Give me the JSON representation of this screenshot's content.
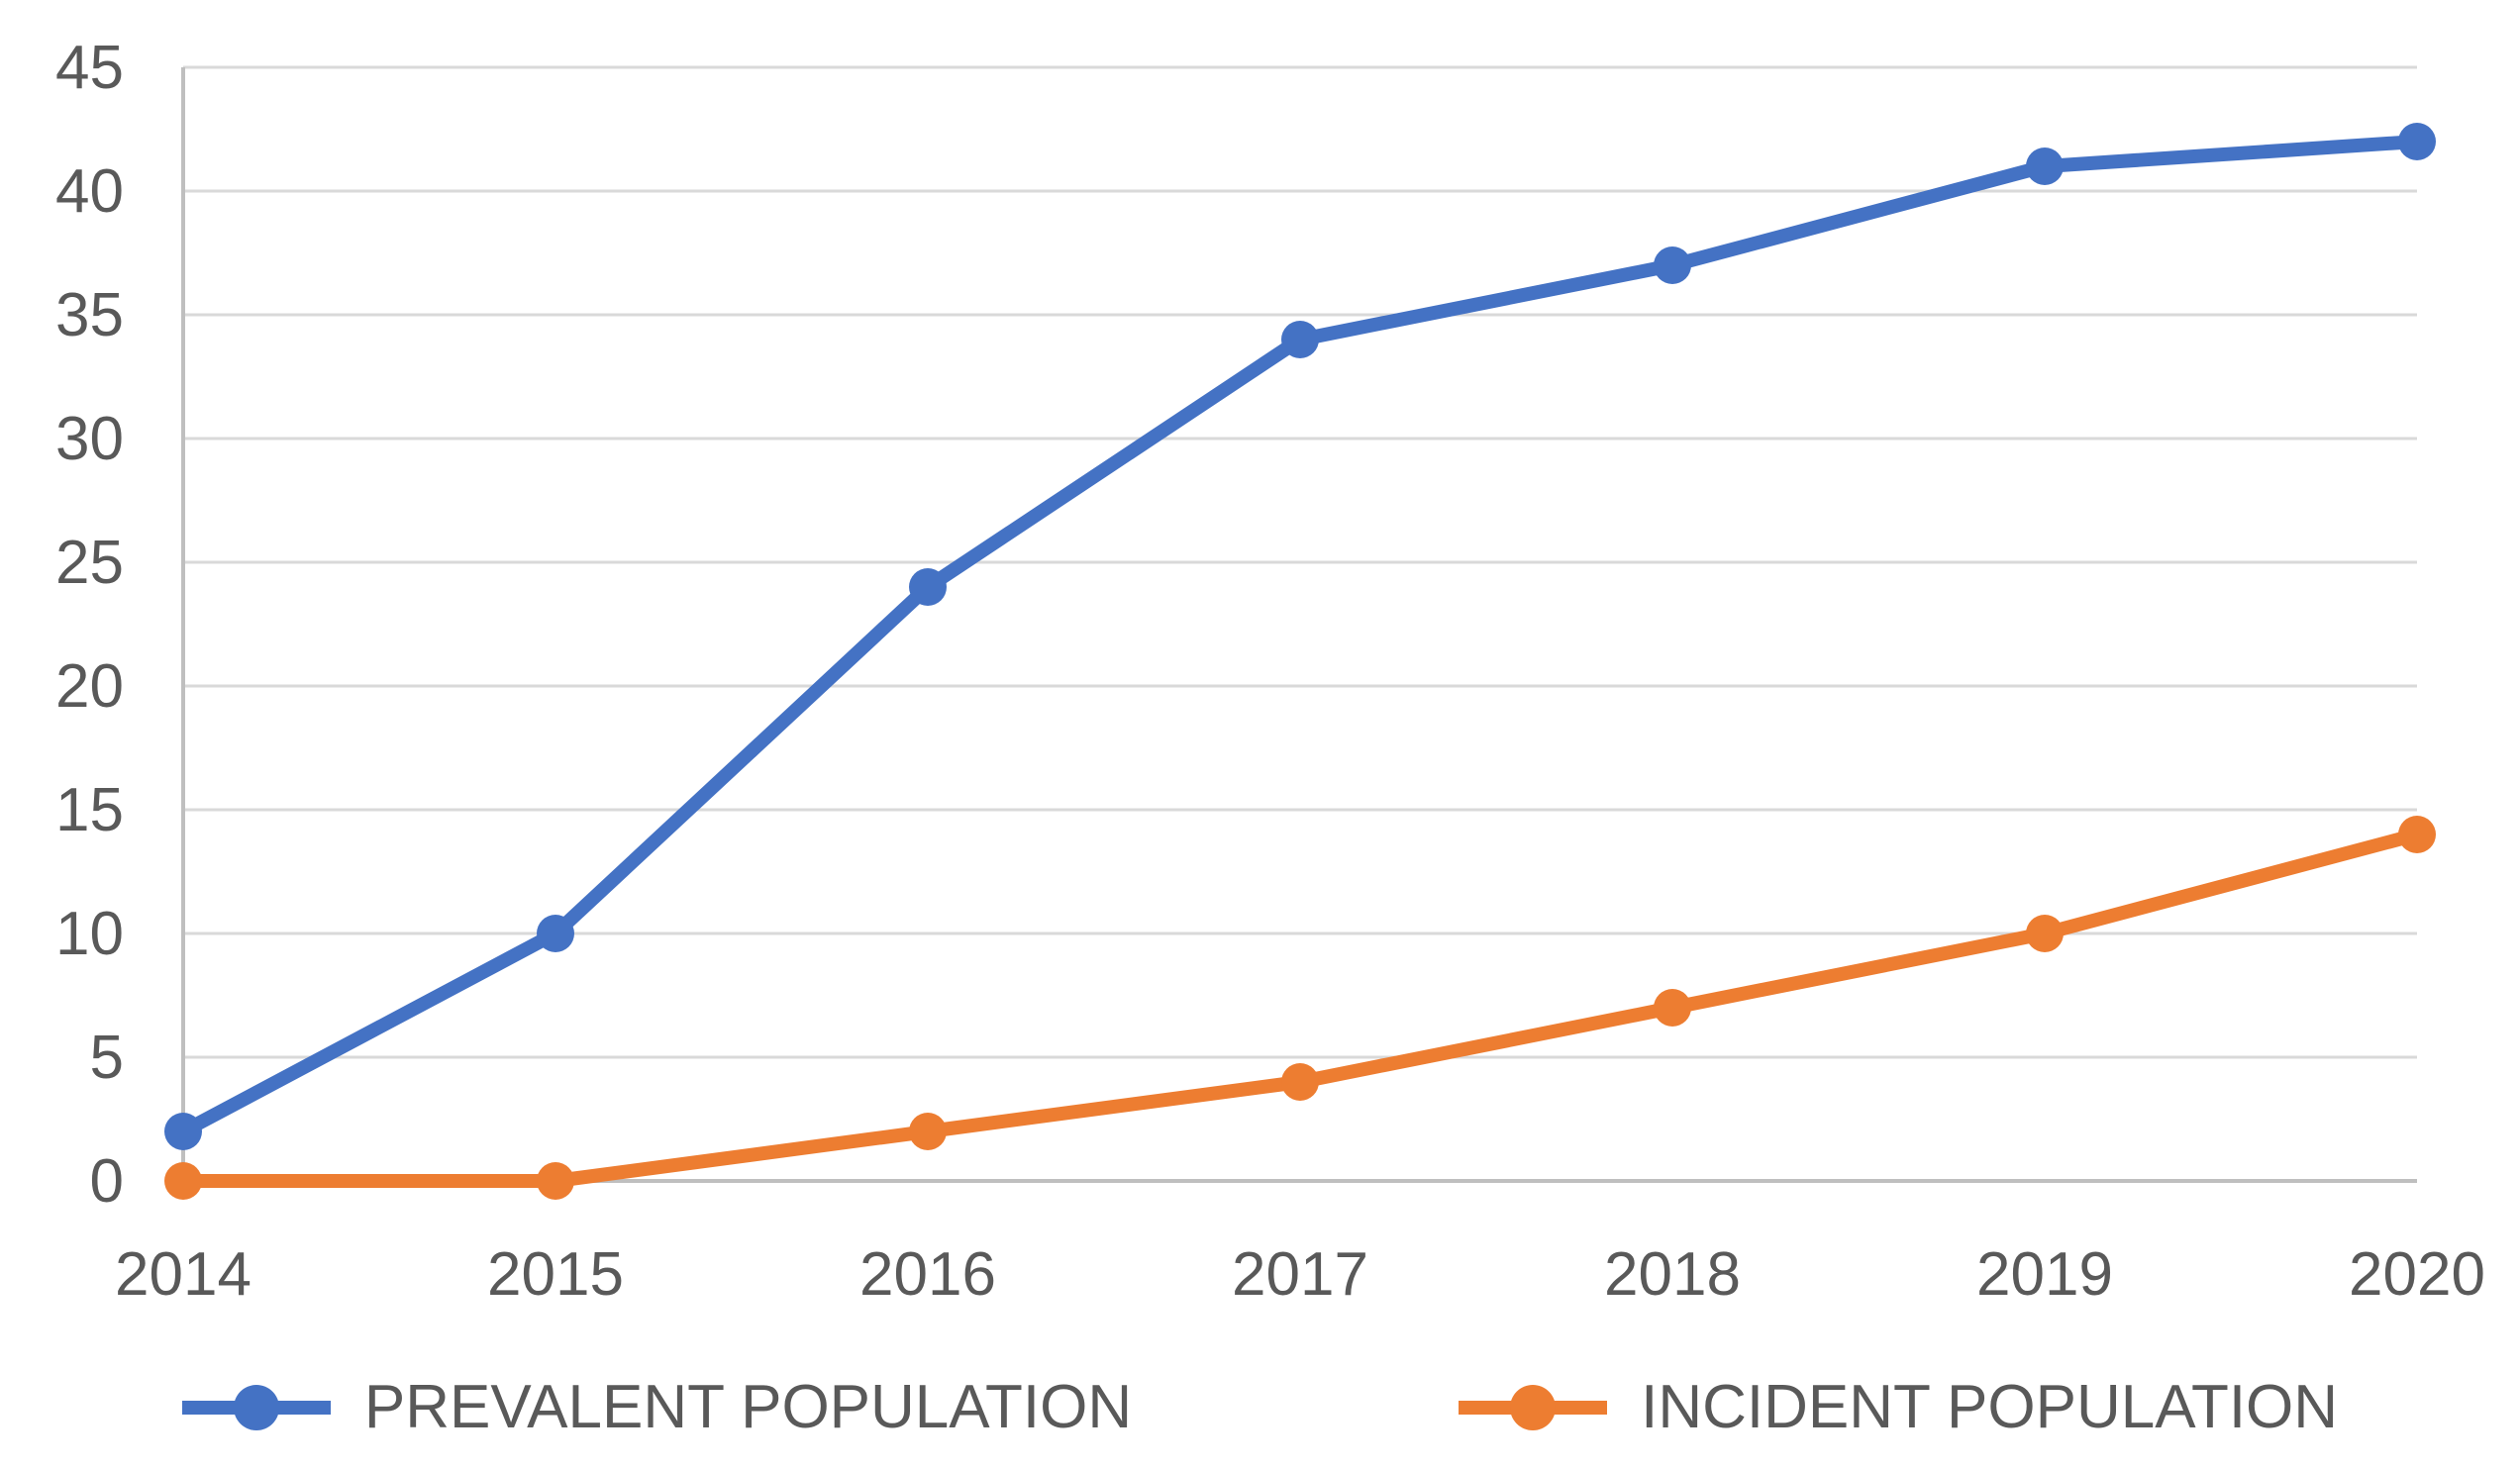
{
  "chart_data": {
    "type": "line",
    "categories": [
      "2014",
      "2015",
      "2016",
      "2017",
      "2018",
      "2019",
      "2020"
    ],
    "series": [
      {
        "name": "PREVALENT POPULATION",
        "color": "#4472C4",
        "values": [
          2,
          10,
          24,
          34,
          37,
          41,
          42
        ]
      },
      {
        "name": "INCIDENT POPULATION",
        "color": "#ED7D31",
        "values": [
          0,
          0,
          2,
          4,
          7,
          10,
          14
        ]
      }
    ],
    "title": "",
    "xlabel": "",
    "ylabel": "",
    "ylim": [
      0,
      45
    ],
    "ytick_step": 5,
    "ytick_labels": [
      "0",
      "5",
      "10",
      "15",
      "20",
      "25",
      "30",
      "35",
      "40",
      "45"
    ],
    "grid": true,
    "legend_position": "bottom",
    "marker": "circle"
  },
  "style_colors": {
    "gridline": "#D9D9D9",
    "axis_line": "#BFBFBF",
    "tick_label": "#595959",
    "background": "#FFFFFF"
  }
}
